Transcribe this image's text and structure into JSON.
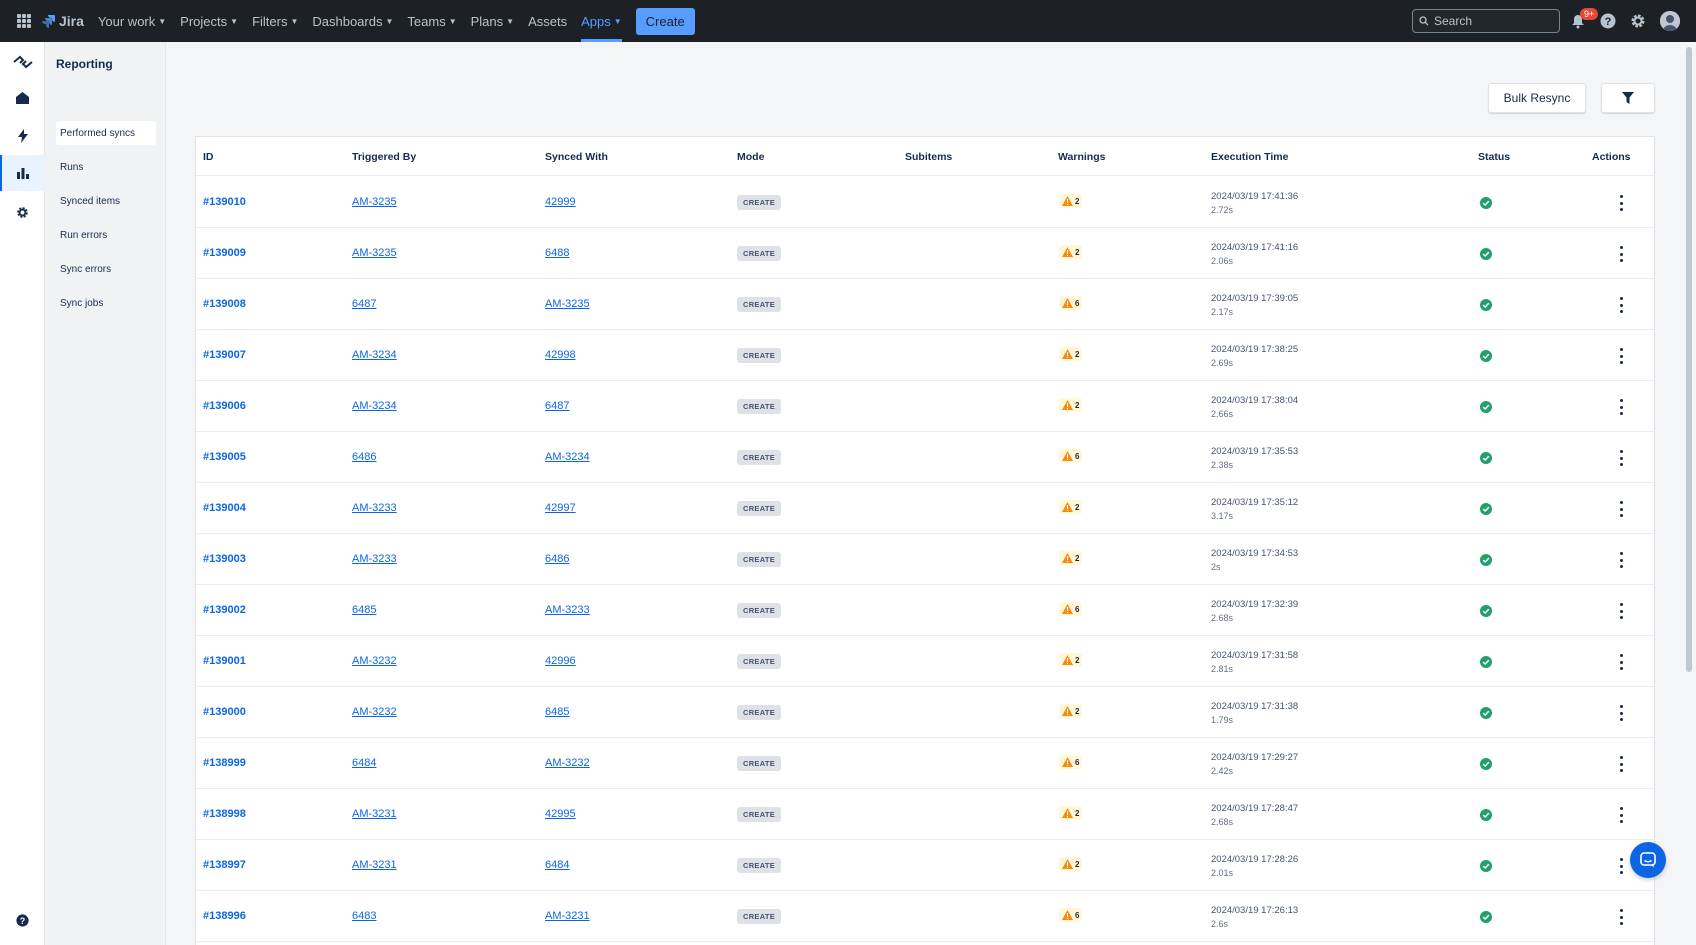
{
  "topnav": {
    "app_name": "Jira",
    "items": [
      {
        "label": "Your work",
        "chevron": true
      },
      {
        "label": "Projects",
        "chevron": true
      },
      {
        "label": "Filters",
        "chevron": true
      },
      {
        "label": "Dashboards",
        "chevron": true
      },
      {
        "label": "Teams",
        "chevron": true
      },
      {
        "label": "Plans",
        "chevron": true
      },
      {
        "label": "Assets",
        "chevron": false
      },
      {
        "label": "Apps",
        "chevron": true,
        "active": true
      }
    ],
    "create_label": "Create",
    "search_placeholder": "Search",
    "notification_count": "9+"
  },
  "rail": {
    "icons": [
      "app-logo-icon",
      "home-icon",
      "lightning-icon",
      "chart-icon",
      "settings-icon",
      "help-icon"
    ]
  },
  "sidebar": {
    "title": "Reporting",
    "items": [
      {
        "label": "Performed syncs",
        "active": true
      },
      {
        "label": "Runs"
      },
      {
        "label": "Synced items"
      },
      {
        "label": "Run errors"
      },
      {
        "label": "Sync errors"
      },
      {
        "label": "Sync jobs"
      }
    ]
  },
  "toolbar": {
    "bulk_resync_label": "Bulk Resync"
  },
  "table": {
    "headers": {
      "id": "ID",
      "triggered_by": "Triggered By",
      "synced_with": "Synced With",
      "mode": "Mode",
      "subitems": "Subitems",
      "warnings": "Warnings",
      "execution_time": "Execution Time",
      "status": "Status",
      "actions": "Actions"
    },
    "rows": [
      {
        "id": "#139010",
        "triggered_by": "AM-3235",
        "synced_with": "42999",
        "mode": "CREATE",
        "warnings": "2",
        "datetime": "2024/03/19 17:41:36",
        "duration": "2.72s"
      },
      {
        "id": "#139009",
        "triggered_by": "AM-3235",
        "synced_with": "6488",
        "mode": "CREATE",
        "warnings": "2",
        "datetime": "2024/03/19 17:41:16",
        "duration": "2.06s"
      },
      {
        "id": "#139008",
        "triggered_by": "6487",
        "synced_with": "AM-3235",
        "mode": "CREATE",
        "warnings": "6",
        "datetime": "2024/03/19 17:39:05",
        "duration": "2.17s"
      },
      {
        "id": "#139007",
        "triggered_by": "AM-3234",
        "synced_with": "42998",
        "mode": "CREATE",
        "warnings": "2",
        "datetime": "2024/03/19 17:38:25",
        "duration": "2.69s"
      },
      {
        "id": "#139006",
        "triggered_by": "AM-3234",
        "synced_with": "6487",
        "mode": "CREATE",
        "warnings": "2",
        "datetime": "2024/03/19 17:38:04",
        "duration": "2.66s"
      },
      {
        "id": "#139005",
        "triggered_by": "6486",
        "synced_with": "AM-3234",
        "mode": "CREATE",
        "warnings": "6",
        "datetime": "2024/03/19 17:35:53",
        "duration": "2.38s"
      },
      {
        "id": "#139004",
        "triggered_by": "AM-3233",
        "synced_with": "42997",
        "mode": "CREATE",
        "warnings": "2",
        "datetime": "2024/03/19 17:35:12",
        "duration": "3.17s"
      },
      {
        "id": "#139003",
        "triggered_by": "AM-3233",
        "synced_with": "6486",
        "mode": "CREATE",
        "warnings": "2",
        "datetime": "2024/03/19 17:34:53",
        "duration": "2s"
      },
      {
        "id": "#139002",
        "triggered_by": "6485",
        "synced_with": "AM-3233",
        "mode": "CREATE",
        "warnings": "6",
        "datetime": "2024/03/19 17:32:39",
        "duration": "2.68s"
      },
      {
        "id": "#139001",
        "triggered_by": "AM-3232",
        "synced_with": "42996",
        "mode": "CREATE",
        "warnings": "2",
        "datetime": "2024/03/19 17:31:58",
        "duration": "2.81s"
      },
      {
        "id": "#139000",
        "triggered_by": "AM-3232",
        "synced_with": "6485",
        "mode": "CREATE",
        "warnings": "2",
        "datetime": "2024/03/19 17:31:38",
        "duration": "1.79s"
      },
      {
        "id": "#138999",
        "triggered_by": "6484",
        "synced_with": "AM-3232",
        "mode": "CREATE",
        "warnings": "6",
        "datetime": "2024/03/19 17:29:27",
        "duration": "2.42s"
      },
      {
        "id": "#138998",
        "triggered_by": "AM-3231",
        "synced_with": "42995",
        "mode": "CREATE",
        "warnings": "2",
        "datetime": "2024/03/19 17:28:47",
        "duration": "2.68s"
      },
      {
        "id": "#138997",
        "triggered_by": "AM-3231",
        "synced_with": "6484",
        "mode": "CREATE",
        "warnings": "2",
        "datetime": "2024/03/19 17:28:26",
        "duration": "2.01s"
      },
      {
        "id": "#138996",
        "triggered_by": "6483",
        "synced_with": "AM-3231",
        "mode": "CREATE",
        "warnings": "6",
        "datetime": "2024/03/19 17:26:13",
        "duration": "2.6s"
      }
    ]
  },
  "colors": {
    "nav_bg": "#1d2125",
    "accent": "#579dff",
    "link": "#0c66e4",
    "success": "#22a06b",
    "warning": "#f18d13"
  }
}
